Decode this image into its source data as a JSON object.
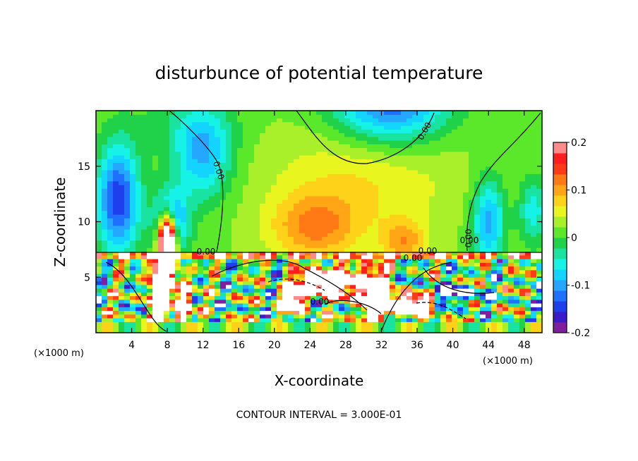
{
  "chart_data": {
    "type": "heatmap",
    "title": "disturbunce of potential temperature",
    "xlabel": "X-coordinate",
    "ylabel": "Z-coordinate",
    "x_unit": "(×1000 m)",
    "xlim": [
      0,
      50
    ],
    "ylim": [
      0,
      20
    ],
    "x_ticks": [
      4,
      8,
      12,
      16,
      20,
      24,
      28,
      32,
      36,
      40,
      44,
      48
    ],
    "y_ticks": [
      5,
      10,
      15
    ],
    "colorbar": {
      "range": [
        -0.2,
        0.2
      ],
      "ticks": [
        -0.2,
        -0.1,
        0,
        0.1,
        0.2
      ],
      "tick_labels": [
        "-0.2",
        "-0.1",
        "0",
        "0.1",
        "0.2"
      ]
    },
    "contour_labels": [
      "0.00",
      "0.00",
      "0.00",
      "0.00",
      "0.00",
      "0.00",
      "0.00",
      "0.00"
    ],
    "footer": "CONTOUR INTERVAL = 3.000E-01"
  }
}
